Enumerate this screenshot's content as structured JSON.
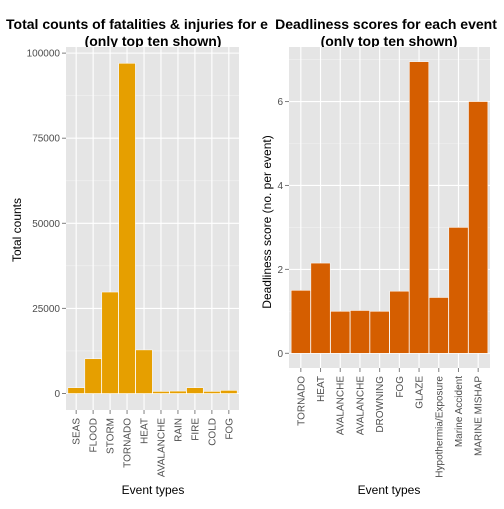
{
  "chart_data": [
    {
      "type": "bar",
      "title": "Total counts of fatalities & injuries for e",
      "subtitle": "(only top ten shown)",
      "xlabel": "Event types",
      "ylabel": "Total counts",
      "categories": [
        "SEAS",
        "FLOOD",
        "STORM",
        "TORNADO",
        "HEAT",
        "AVALANCHE",
        "RAIN",
        "FIRE",
        "COLD",
        "FOG"
      ],
      "values": [
        1700,
        10200,
        29800,
        97000,
        12800,
        600,
        700,
        1700,
        600,
        900
      ],
      "yticks": [
        0,
        25000,
        50000,
        75000,
        100000
      ],
      "ytick_labels": [
        "0",
        "25000",
        "50000",
        "75000",
        "100000"
      ],
      "ylim": [
        -4850,
        101800
      ],
      "grid": true,
      "bar_color": "#E69F00"
    },
    {
      "type": "bar",
      "title": "Deadliness scores for each event",
      "subtitle": "(only top ten shown)",
      "xlabel": "Event types",
      "ylabel": "Deadliness score (no. per event)",
      "categories": [
        "TORNADO",
        "HEAT",
        "AVALANCHE",
        "AVALANCHE",
        "DROWNING",
        "FOG",
        "GLAZE",
        "Hypothermia/Exposure",
        "Marine Accident",
        "MARINE MISHAP"
      ],
      "values": [
        1.5,
        2.15,
        1.0,
        1.02,
        1.0,
        1.48,
        6.95,
        1.33,
        3.0,
        6.0
      ],
      "yticks": [
        0,
        2,
        4,
        6
      ],
      "ytick_labels": [
        "0",
        "2",
        "4",
        "6"
      ],
      "ylim": [
        -0.35,
        7.3
      ],
      "grid": true,
      "bar_color": "#D55E00"
    }
  ]
}
